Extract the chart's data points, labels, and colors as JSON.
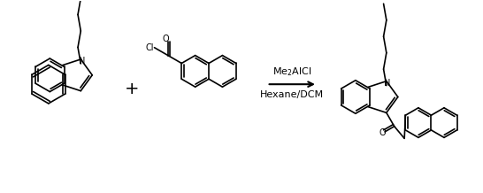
{
  "background_color": "#ffffff",
  "fig_width": 5.46,
  "fig_height": 2.18,
  "dpi": 100,
  "reagent_label_part1": "Me",
  "reagent_label_sub": "2",
  "reagent_label_part2": "AlCl",
  "solvent_label": "Hexane/DCM",
  "line_color": "#000000",
  "line_width": 1.2,
  "arrow_color": "#000000"
}
